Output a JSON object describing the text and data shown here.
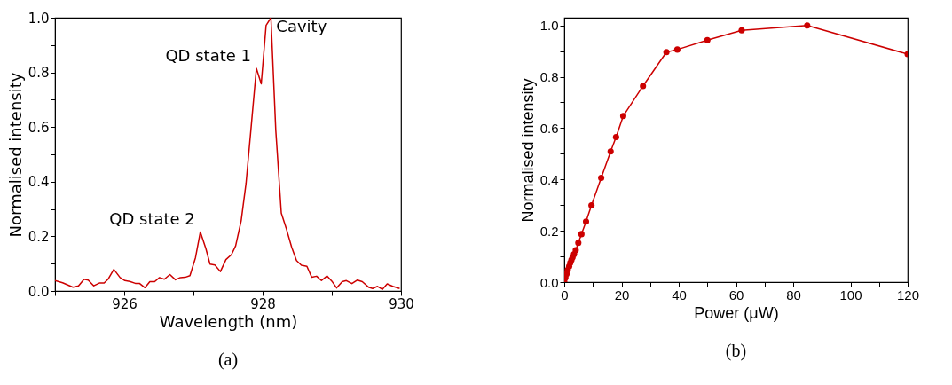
{
  "chart_data": [
    {
      "type": "line",
      "xlabel": "Wavelength (nm)",
      "ylabel": "Normalised intensity",
      "xlim": [
        925,
        930
      ],
      "ylim": [
        0,
        1
      ],
      "xticks": [
        {
          "value": 925,
          "label": null
        },
        926,
        {
          "value": 927,
          "label": null
        },
        928,
        {
          "value": 929,
          "label": null
        },
        930
      ],
      "yticks": [
        {
          "value": 0,
          "label": "0.0"
        },
        {
          "value": 0.1,
          "label": null
        },
        {
          "value": 0.2,
          "label": "0.2"
        },
        {
          "value": 0.3,
          "label": null
        },
        {
          "value": 0.4,
          "label": "0.4"
        },
        {
          "value": 0.5,
          "label": null
        },
        {
          "value": 0.6,
          "label": "0.6"
        },
        {
          "value": 0.7,
          "label": null
        },
        {
          "value": 0.8,
          "label": "0.8"
        },
        {
          "value": 0.9,
          "label": null
        },
        {
          "value": 1,
          "label": "1.0"
        }
      ],
      "grid": false,
      "marker": "none",
      "annotations": [
        {
          "text": "QD state 1",
          "x": 927.91,
          "y": 0.815
        },
        {
          "text": "Cavity",
          "x": 928.12,
          "y": 1.0
        },
        {
          "text": "QD state 2",
          "x": 927.1,
          "y": 0.216
        },
        "(a)"
      ],
      "series": [
        {
          "color": "#cc0000",
          "x": [
            925.0,
            925.11,
            925.26,
            925.34,
            925.42,
            925.48,
            925.56,
            925.64,
            925.71,
            925.77,
            925.85,
            925.94,
            926.01,
            926.08,
            926.16,
            926.22,
            926.3,
            926.37,
            926.44,
            926.51,
            926.58,
            926.66,
            926.74,
            926.81,
            926.88,
            926.95,
            927.03,
            927.1,
            927.18,
            927.24,
            927.31,
            927.39,
            927.47,
            927.55,
            927.61,
            927.69,
            927.76,
            927.83,
            927.91,
            927.98,
            928.05,
            928.12,
            928.19,
            928.27,
            928.34,
            928.42,
            928.49,
            928.56,
            928.64,
            928.71,
            928.78,
            928.85,
            928.93,
            929.0,
            929.07,
            929.15,
            929.21,
            929.29,
            929.37,
            929.44,
            929.53,
            929.59,
            929.66,
            929.73,
            929.8,
            929.88,
            929.98
          ],
          "values": [
            0.038,
            0.03,
            0.014,
            0.019,
            0.043,
            0.04,
            0.019,
            0.029,
            0.029,
            0.044,
            0.079,
            0.049,
            0.038,
            0.035,
            0.028,
            0.028,
            0.012,
            0.034,
            0.034,
            0.049,
            0.043,
            0.06,
            0.041,
            0.049,
            0.05,
            0.056,
            0.122,
            0.216,
            0.155,
            0.098,
            0.095,
            0.071,
            0.115,
            0.133,
            0.165,
            0.257,
            0.393,
            0.588,
            0.815,
            0.758,
            0.972,
            1.0,
            0.588,
            0.285,
            0.23,
            0.16,
            0.111,
            0.094,
            0.09,
            0.05,
            0.054,
            0.038,
            0.055,
            0.036,
            0.011,
            0.034,
            0.038,
            0.027,
            0.04,
            0.034,
            0.014,
            0.009,
            0.017,
            0.006,
            0.026,
            0.017,
            0.009
          ]
        }
      ]
    },
    {
      "type": "line",
      "xlabel": "Power (μW)",
      "ylabel": "Normalised intensity",
      "xlim": [
        0,
        120
      ],
      "ylim": [
        0,
        1.03
      ],
      "xticks": [
        0,
        {
          "value": 10,
          "label": null
        },
        20,
        {
          "value": 30,
          "label": null
        },
        40,
        {
          "value": 50,
          "label": null
        },
        60,
        {
          "value": 70,
          "label": null
        },
        80,
        {
          "value": 90,
          "label": null
        },
        100,
        {
          "value": 110,
          "label": null
        },
        120
      ],
      "yticks": [
        {
          "value": 0,
          "label": "0.0"
        },
        {
          "value": 0.1,
          "label": null
        },
        {
          "value": 0.2,
          "label": "0.2"
        },
        {
          "value": 0.3,
          "label": null
        },
        {
          "value": 0.4,
          "label": "0.4"
        },
        {
          "value": 0.5,
          "label": null
        },
        {
          "value": 0.6,
          "label": "0.6"
        },
        {
          "value": 0.7,
          "label": null
        },
        {
          "value": 0.8,
          "label": "0.8"
        },
        {
          "value": 0.9,
          "label": null
        },
        {
          "value": 1,
          "label": "1.0"
        }
      ],
      "grid": false,
      "marker": "circle",
      "annotations": [
        "(b)"
      ],
      "series": [
        {
          "color": "#cc0000",
          "x": [
            0.0,
            0.4,
            0.8,
            1.2,
            1.7,
            2.1,
            2.5,
            2.9,
            3.4,
            4.0,
            4.9,
            6.0,
            7.6,
            9.5,
            12.9,
            16.2,
            18.1,
            20.6,
            27.5,
            35.7,
            39.5,
            50.0,
            62.0,
            84.9,
            120
          ],
          "values": [
            0.003,
            0.017,
            0.032,
            0.047,
            0.061,
            0.075,
            0.086,
            0.097,
            0.109,
            0.124,
            0.153,
            0.187,
            0.236,
            0.299,
            0.406,
            0.509,
            0.565,
            0.647,
            0.764,
            0.896,
            0.906,
            0.943,
            0.981,
            1.0,
            0.888
          ]
        }
      ]
    }
  ]
}
